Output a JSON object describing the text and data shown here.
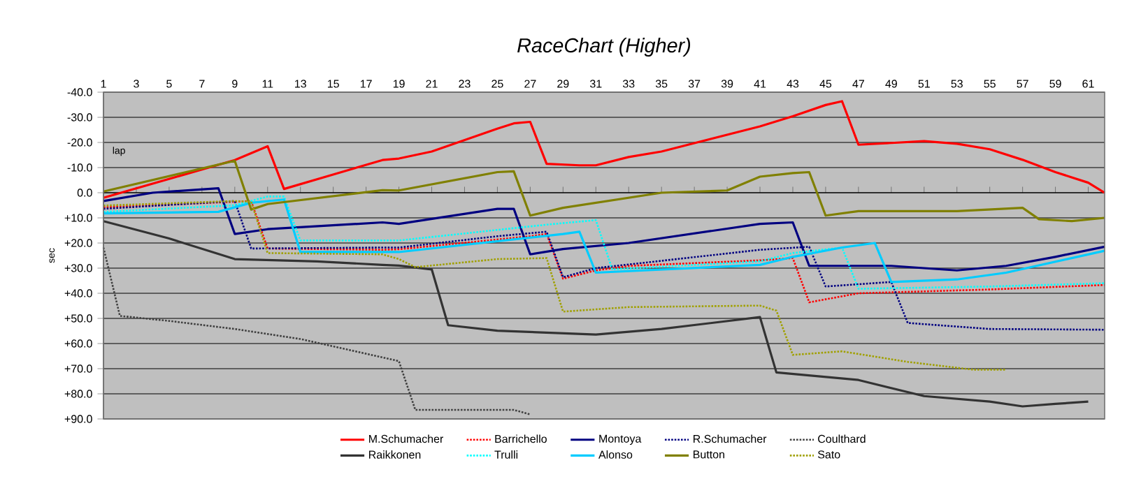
{
  "chart_data": {
    "type": "line",
    "title": "RaceChart (Higher)",
    "xlabel": "lap",
    "ylabel": "sec",
    "xlim": [
      1,
      62
    ],
    "ylim": [
      90,
      -40
    ],
    "xticks": [
      1,
      3,
      5,
      7,
      9,
      11,
      13,
      15,
      17,
      19,
      21,
      23,
      25,
      27,
      29,
      31,
      33,
      35,
      37,
      39,
      41,
      43,
      45,
      47,
      49,
      51,
      53,
      55,
      57,
      59,
      61
    ],
    "yticks": [
      {
        "value": -40,
        "label": "-40.0"
      },
      {
        "value": -30,
        "label": "-30.0"
      },
      {
        "value": -20,
        "label": "-20.0"
      },
      {
        "value": -10,
        "label": "-10.0"
      },
      {
        "value": 0,
        "label": "0.0"
      },
      {
        "value": 10,
        "label": "+10.0"
      },
      {
        "value": 20,
        "label": "+20.0"
      },
      {
        "value": 30,
        "label": "+30.0"
      },
      {
        "value": 40,
        "label": "+40.0"
      },
      {
        "value": 50,
        "label": "+50.0"
      },
      {
        "value": 60,
        "label": "+60.0"
      },
      {
        "value": 70,
        "label": "+70.0"
      },
      {
        "value": 80,
        "label": "+80.0"
      },
      {
        "value": 90,
        "label": "+90.0"
      }
    ],
    "grid": "y",
    "legend": "bottom",
    "marker": "none",
    "series": [
      {
        "name": "M.Schumacher",
        "color": "#ff0000",
        "line_style": "solid",
        "x": [
          1,
          9,
          11,
          12,
          18,
          19,
          21,
          25,
          26,
          27,
          28,
          30,
          31,
          33,
          35,
          41,
          43,
          45,
          46,
          47,
          49,
          51,
          53,
          55,
          57,
          59,
          61,
          62
        ],
        "values": [
          2,
          -13,
          -18.5,
          -1.5,
          -13,
          -13.6,
          -16.4,
          -25.5,
          -27.6,
          -28.2,
          -11.5,
          -10.9,
          -10.9,
          -14.2,
          -16.4,
          -26.4,
          -30.4,
          -34.9,
          -36.4,
          -19.1,
          -19.8,
          -20.5,
          -19.5,
          -17.3,
          -13.1,
          -8.2,
          -4,
          0
        ]
      },
      {
        "name": "Barrichello",
        "color": "#ff0000",
        "line_style": "dotted",
        "x": [
          1,
          10,
          11,
          18,
          19,
          27,
          28,
          29,
          31,
          33,
          41,
          43,
          44,
          47,
          55,
          62
        ],
        "values": [
          5.8,
          3.3,
          22.2,
          22.7,
          22.5,
          17.3,
          16.4,
          34.2,
          30.9,
          29.1,
          26.9,
          26,
          43.6,
          40,
          38.5,
          36.7
        ]
      },
      {
        "name": "Montoya",
        "color": "#000080",
        "line_style": "solid",
        "x": [
          1,
          4,
          8,
          9,
          11,
          18,
          19,
          25,
          26,
          27,
          29,
          33,
          41,
          43,
          44,
          49,
          53,
          56,
          59,
          62
        ],
        "values": [
          3.3,
          0,
          -1.8,
          16.4,
          14.5,
          11.8,
          12.4,
          6.4,
          6.4,
          24.5,
          22.4,
          20,
          12.4,
          11.8,
          29.1,
          29.1,
          30.9,
          29.1,
          25.5,
          21.5
        ]
      },
      {
        "name": "R.Schumacher",
        "color": "#000080",
        "line_style": "dotted",
        "x": [
          1,
          9,
          10,
          18,
          19,
          25,
          28,
          29,
          31,
          41,
          44,
          45,
          49,
          50,
          55,
          62
        ],
        "values": [
          6.4,
          3.3,
          22.2,
          21.8,
          21.8,
          17.3,
          15.5,
          33.6,
          30,
          22.7,
          21.5,
          37.3,
          35.5,
          51.8,
          54.2,
          54.5
        ]
      },
      {
        "name": "Coulthard",
        "color": "#404040",
        "line_style": "dotted",
        "x": [
          1,
          2,
          5,
          9,
          13,
          18,
          19,
          20,
          26,
          27
        ],
        "values": [
          21.8,
          49,
          51,
          54.2,
          58.2,
          65.5,
          67,
          86.4,
          86.4,
          88.2
        ]
      },
      {
        "name": "Raikkonen",
        "color": "#333333",
        "line_style": "solid",
        "x": [
          1,
          5,
          9,
          14,
          18,
          19,
          21,
          22,
          25,
          31,
          35,
          41,
          42,
          47,
          51,
          55,
          57,
          59,
          61
        ],
        "values": [
          11.3,
          18.2,
          26.4,
          27.3,
          28.7,
          29,
          30.5,
          52.7,
          54.9,
          56.4,
          54.2,
          49.5,
          71.5,
          74.5,
          80.9,
          83.1,
          85,
          84,
          83.1
        ]
      },
      {
        "name": "Trulli",
        "color": "#00ffff",
        "line_style": "dotted",
        "x": [
          1,
          9,
          11,
          12,
          13,
          18,
          19,
          28,
          31,
          32,
          41,
          43,
          46,
          47,
          55,
          62
        ],
        "values": [
          7.6,
          5,
          1.5,
          1.5,
          19,
          19,
          19,
          12.7,
          10.9,
          30.5,
          27.3,
          24,
          21.8,
          38.2,
          37.3,
          36
        ]
      },
      {
        "name": "Alonso",
        "color": "#00ccff",
        "line_style": "solid",
        "x": [
          1,
          8,
          10,
          12,
          13,
          18,
          19,
          29,
          30,
          31,
          41,
          43,
          46,
          48,
          49,
          53,
          56,
          62
        ],
        "values": [
          8.2,
          7.6,
          4,
          2.7,
          23.6,
          23.6,
          23.6,
          16.4,
          15.5,
          31.8,
          28.7,
          25.5,
          21.8,
          20,
          35.5,
          34.5,
          31.8,
          23.1
        ]
      },
      {
        "name": "Button",
        "color": "#808000",
        "line_style": "solid",
        "x": [
          1,
          9,
          10,
          11,
          18,
          19,
          25,
          26,
          27,
          29,
          35,
          39,
          41,
          43,
          44,
          45,
          47,
          53,
          57,
          58,
          60,
          62
        ],
        "values": [
          -0.5,
          -12.7,
          6.7,
          4.5,
          -1,
          -0.9,
          -8.2,
          -8.5,
          9.1,
          6,
          0,
          -0.9,
          -6.4,
          -7.8,
          -8.2,
          9.1,
          7.3,
          7.3,
          6,
          10.5,
          11.3,
          10
        ]
      },
      {
        "name": "Sato",
        "color": "#a0a000",
        "line_style": "dotted",
        "x": [
          1,
          9,
          10,
          11,
          18,
          19,
          20,
          25,
          28,
          29,
          33,
          41,
          42,
          43,
          46,
          50,
          54,
          56
        ],
        "values": [
          5.1,
          3.3,
          3.6,
          24,
          24.5,
          26.4,
          29.6,
          26.4,
          26,
          47.3,
          45.5,
          44.9,
          46.9,
          64.5,
          63.1,
          67.3,
          70.4,
          70.4
        ]
      }
    ]
  }
}
